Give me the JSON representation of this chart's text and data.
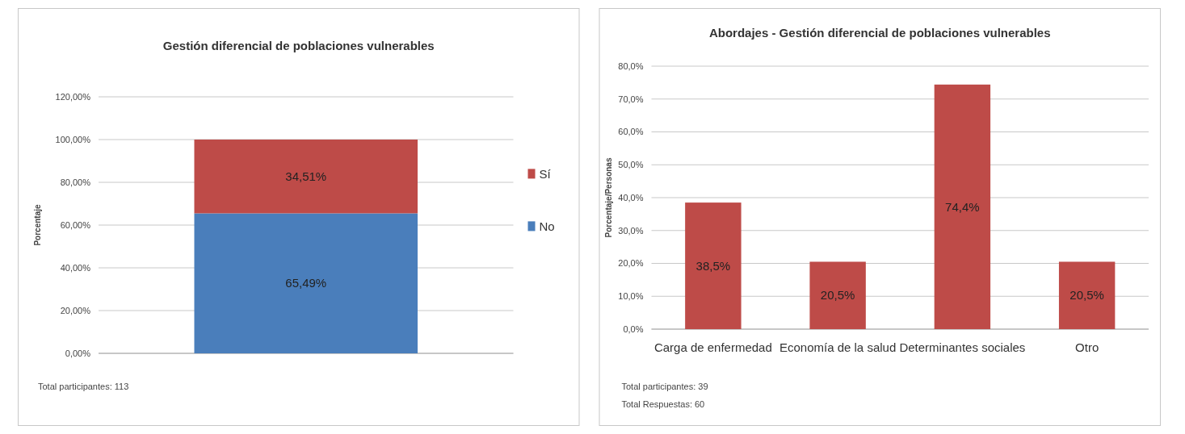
{
  "chart_data": [
    {
      "type": "bar",
      "title": "Gestión diferencial de poblaciones vulnerables",
      "ylabel": "Porcentaje",
      "categories": [
        null
      ],
      "stacked": true,
      "legend": "right",
      "grid": "y",
      "series": [
        {
          "name": "No",
          "color": "#4a7ebb",
          "values": [
            65.49
          ],
          "value_labels": [
            "65,49%"
          ]
        },
        {
          "name": "Sí",
          "color": "#be4b48",
          "values": [
            34.51
          ],
          "value_labels": [
            "34,51%"
          ]
        }
      ],
      "ylim": [
        0,
        120
      ],
      "yticks": [
        {
          "value": 0,
          "label": "0,00%"
        },
        {
          "value": 20,
          "label": "20,00%"
        },
        {
          "value": 40,
          "label": "40,00%"
        },
        {
          "value": 60,
          "label": "60,00%"
        },
        {
          "value": 80,
          "label": "80,00%"
        },
        {
          "value": 100,
          "label": "100,00%"
        },
        {
          "value": 120,
          "label": "120,00%"
        }
      ],
      "annotations": [
        "Total participantes: 113"
      ]
    },
    {
      "type": "bar",
      "title": "Abordajes - Gestión diferencial de poblaciones vulnerables",
      "ylabel": "Porcentaje/Personas",
      "categories": [
        "Carga de enfermedad",
        "Economía de la salud",
        "Determinantes sociales",
        "Otro"
      ],
      "grid": "y",
      "color": "#be4b48",
      "values": [
        38.5,
        20.5,
        74.4,
        20.5
      ],
      "value_labels": [
        "38,5%",
        "20,5%",
        "74,4%",
        "20,5%"
      ],
      "ylim": [
        0,
        80
      ],
      "yticks": [
        {
          "value": 0,
          "label": "0,0%"
        },
        {
          "value": 10,
          "label": "10,0%"
        },
        {
          "value": 20,
          "label": "20,0%"
        },
        {
          "value": 30,
          "label": "30,0%"
        },
        {
          "value": 40,
          "label": "40,0%"
        },
        {
          "value": 50,
          "label": "50,0%"
        },
        {
          "value": 60,
          "label": "60,0%"
        },
        {
          "value": 70,
          "label": "70,0%"
        },
        {
          "value": 80,
          "label": "80,0%"
        }
      ],
      "annotations": [
        "Total participantes: 39",
        "Total Respuestas: 60"
      ]
    }
  ]
}
